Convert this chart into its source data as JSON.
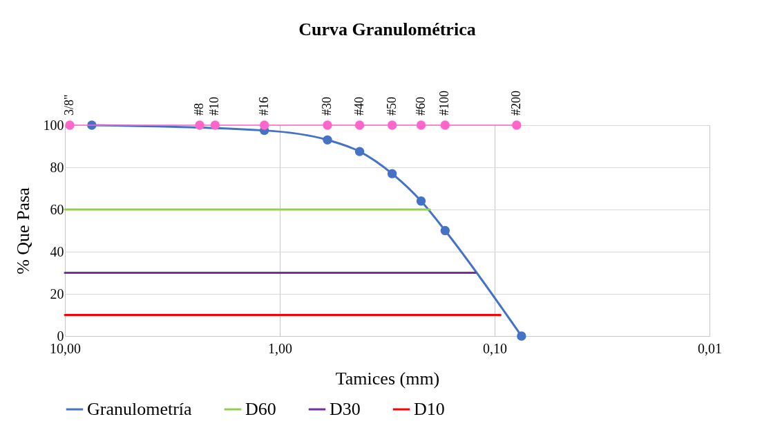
{
  "chart_data": {
    "type": "line",
    "title": "Curva Granulométrica",
    "xlabel": "Tamices (mm)",
    "ylabel": "% Que Pasa",
    "log": "x",
    "xlim": [
      10,
      0.01
    ],
    "xticks": [
      {
        "value": 10,
        "label": "10,00"
      },
      {
        "value": 1,
        "label": "1,00"
      },
      {
        "value": 0.1,
        "label": "0,10"
      },
      {
        "value": 0.01,
        "label": "0,01"
      }
    ],
    "ylim": [
      0,
      100
    ],
    "yticks": [
      0,
      20,
      40,
      60,
      80,
      100
    ],
    "grid": true,
    "legend": "bottom",
    "series": [
      {
        "name": "Granulometría",
        "color": "#4472c4",
        "marker": "circle",
        "x": [
          7.5,
          2.36,
          2.0,
          1.18,
          0.6,
          0.425,
          0.3,
          0.22,
          0.17,
          0.075
        ],
        "values": [
          100,
          null,
          null,
          97.5,
          93,
          87.5,
          77,
          64,
          50,
          0
        ]
      },
      {
        "color": "#ff66cc",
        "marker": "circle",
        "x": [
          9.5,
          2.36,
          2.0,
          1.18,
          0.6,
          0.425,
          0.3,
          0.22,
          0.17,
          0.079
        ],
        "values": [
          100,
          100,
          100,
          100,
          100,
          100,
          100,
          100,
          100,
          100
        ]
      },
      {
        "name": "D60",
        "color": "#92d050",
        "marker": "none",
        "x": [
          10,
          0.2
        ],
        "values": [
          60,
          60
        ]
      },
      {
        "name": "D30",
        "color": "#7030a0",
        "marker": "none",
        "x": [
          10,
          0.123
        ],
        "values": [
          30,
          30
        ]
      },
      {
        "name": "D10",
        "color": "#ff0000",
        "marker": "none",
        "x": [
          10,
          0.094
        ],
        "values": [
          10,
          10
        ]
      }
    ],
    "annotations": [
      {
        "text": "3/8\"",
        "x": 9.5,
        "y": 100
      },
      {
        "text": "#8",
        "x": 2.36,
        "y": 100
      },
      {
        "text": "#10",
        "x": 2.0,
        "y": 100
      },
      {
        "text": "#16",
        "x": 1.18,
        "y": 100
      },
      {
        "text": "#30",
        "x": 0.6,
        "y": 100
      },
      {
        "text": "#40",
        "x": 0.425,
        "y": 100
      },
      {
        "text": "#50",
        "x": 0.3,
        "y": 100
      },
      {
        "text": "#60",
        "x": 0.22,
        "y": 100
      },
      {
        "text": "#100",
        "x": 0.17,
        "y": 100
      },
      {
        "text": "#200",
        "x": 0.079,
        "y": 100
      }
    ]
  }
}
